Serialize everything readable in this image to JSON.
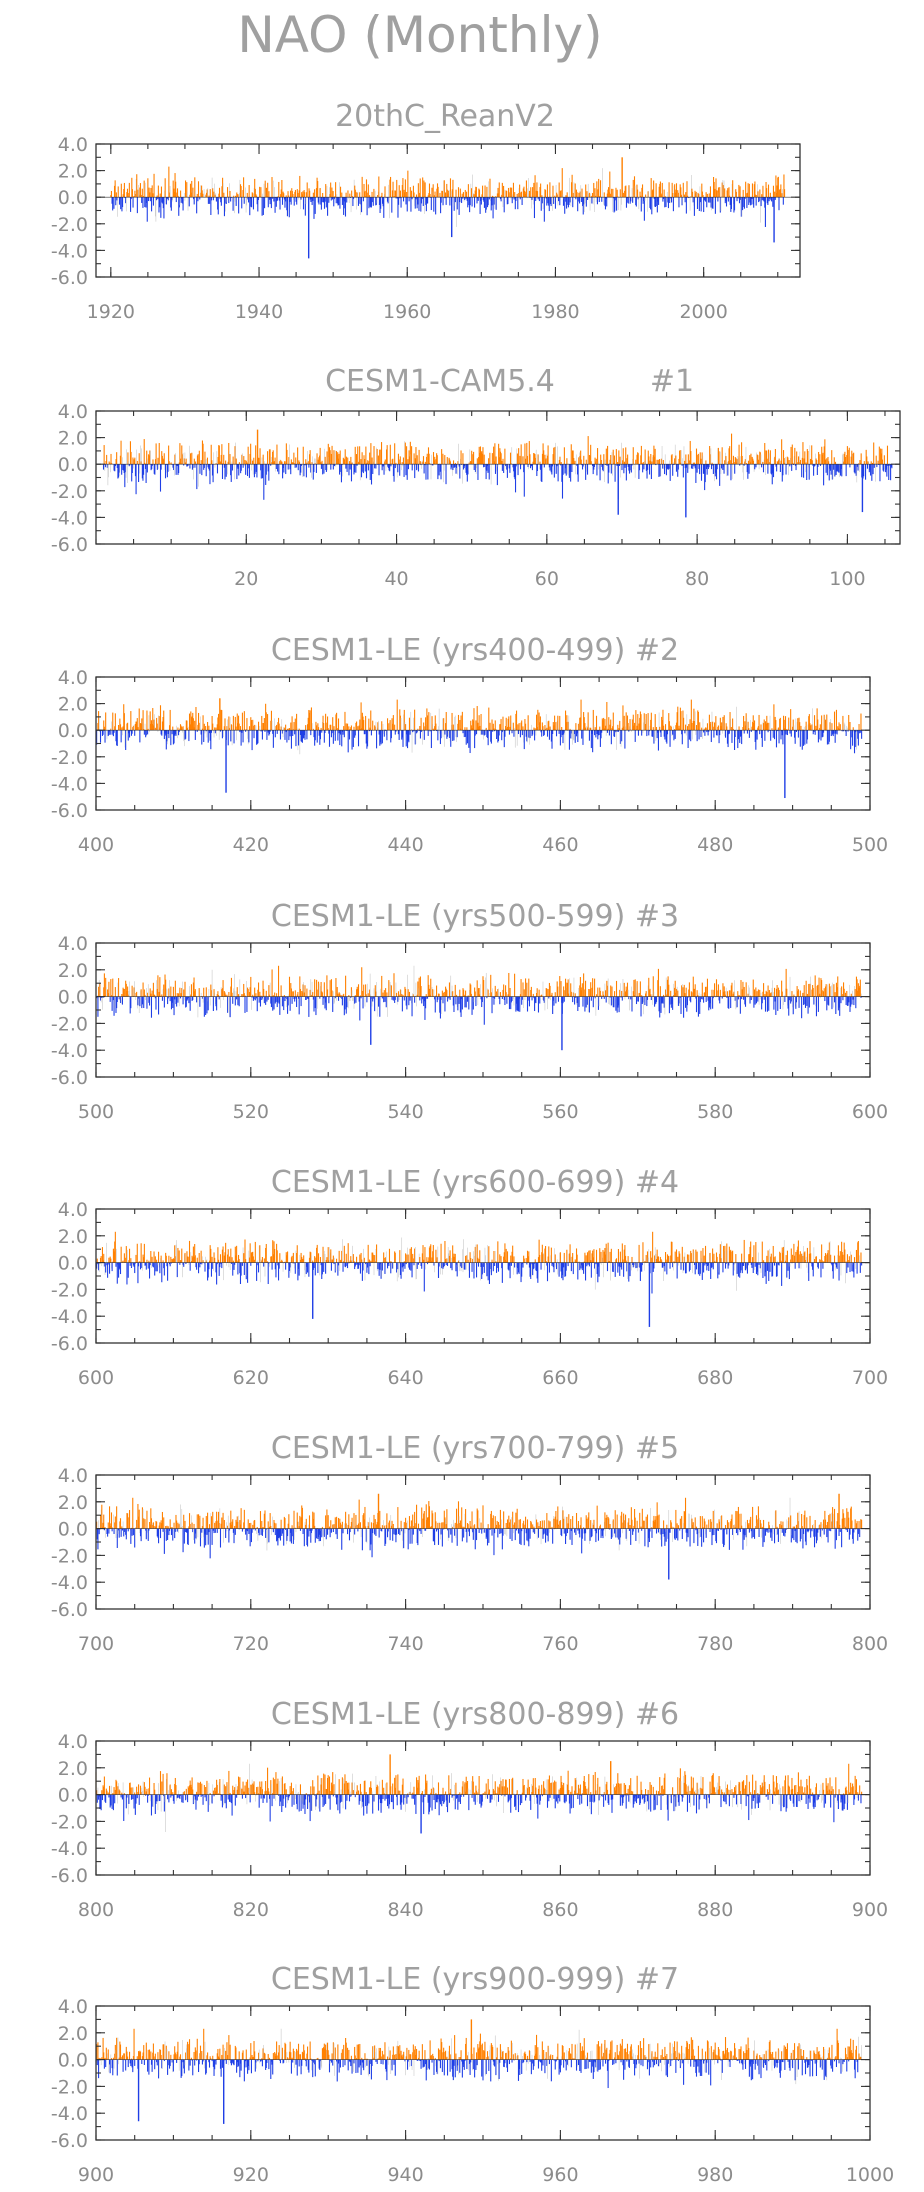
{
  "figure": {
    "title": "NAO (Monthly)"
  },
  "colors": {
    "positive": "#ff8000",
    "negative": "#1f3fe6",
    "faint": "#c8c8c8",
    "text": "#a0a0a0"
  },
  "chart_data": [
    {
      "type": "bar",
      "title": "20thC_ReanV2",
      "title_suffix": "",
      "ylim": [
        -6.0,
        4.0
      ],
      "yticks": [
        "4.0",
        "2.0",
        "0.0",
        "-2.0",
        "-4.0",
        "-6.0"
      ],
      "xlim": [
        1918,
        2013
      ],
      "xticks": [
        "1920",
        "1940",
        "1960",
        "1980",
        "2000"
      ],
      "x_range": [
        1920,
        2011
      ],
      "peaks": [
        {
          "x": 1946.7,
          "y": -4.6
        },
        {
          "x": 1966.0,
          "y": -3.0
        },
        {
          "x": 1989.0,
          "y": 3.0
        },
        {
          "x": 2009.5,
          "y": -3.4
        }
      ]
    },
    {
      "type": "bar",
      "title": "CESM1-CAM5.4",
      "title_suffix": "#1",
      "ylim": [
        -6.0,
        4.0
      ],
      "yticks": [
        "4.0",
        "2.0",
        "0.0",
        "-2.0",
        "-4.0",
        "-6.0"
      ],
      "xlim": [
        0,
        107
      ],
      "xticks": [
        "20",
        "40",
        "60",
        "80",
        "100"
      ],
      "x_range": [
        1,
        106
      ],
      "peaks": [
        {
          "x": 21.5,
          "y": 2.6
        },
        {
          "x": 69.5,
          "y": -3.8
        },
        {
          "x": 78.5,
          "y": -4.0
        },
        {
          "x": 102.0,
          "y": -3.6
        }
      ]
    },
    {
      "type": "bar",
      "title": "CESM1-LE (yrs400-499)",
      "title_suffix": "#2",
      "ylim": [
        -6.0,
        4.0
      ],
      "yticks": [
        "4.0",
        "2.0",
        "0.0",
        "-2.0",
        "-4.0",
        "-6.0"
      ],
      "xlim": [
        400,
        500
      ],
      "xticks": [
        "400",
        "420",
        "440",
        "460",
        "480",
        "500"
      ],
      "x_range": [
        400,
        499
      ],
      "peaks": [
        {
          "x": 416.8,
          "y": -4.7
        },
        {
          "x": 416.0,
          "y": 2.4
        },
        {
          "x": 489.0,
          "y": -5.1
        }
      ]
    },
    {
      "type": "bar",
      "title": "CESM1-LE (yrs500-599)",
      "title_suffix": "#3",
      "ylim": [
        -6.0,
        4.0
      ],
      "yticks": [
        "4.0",
        "2.0",
        "0.0",
        "-2.0",
        "-4.0",
        "-6.0"
      ],
      "xlim": [
        500,
        600
      ],
      "xticks": [
        "500",
        "520",
        "540",
        "560",
        "580",
        "600"
      ],
      "x_range": [
        500,
        599
      ],
      "peaks": [
        {
          "x": 535.5,
          "y": -3.6
        },
        {
          "x": 560.2,
          "y": -4.0
        }
      ]
    },
    {
      "type": "bar",
      "title": "CESM1-LE (yrs600-699)",
      "title_suffix": "#4",
      "ylim": [
        -6.0,
        4.0
      ],
      "yticks": [
        "4.0",
        "2.0",
        "0.0",
        "-2.0",
        "-4.0",
        "-6.0"
      ],
      "xlim": [
        600,
        700
      ],
      "xticks": [
        "600",
        "620",
        "640",
        "660",
        "680",
        "700"
      ],
      "x_range": [
        600,
        699
      ],
      "peaks": [
        {
          "x": 628.0,
          "y": -4.2
        },
        {
          "x": 671.5,
          "y": -4.8
        }
      ]
    },
    {
      "type": "bar",
      "title": "CESM1-LE (yrs700-799)",
      "title_suffix": "#5",
      "ylim": [
        -6.0,
        4.0
      ],
      "yticks": [
        "4.0",
        "2.0",
        "0.0",
        "-2.0",
        "-4.0",
        "-6.0"
      ],
      "xlim": [
        700,
        800
      ],
      "xticks": [
        "700",
        "720",
        "740",
        "760",
        "780",
        "800"
      ],
      "x_range": [
        700,
        799
      ],
      "peaks": [
        {
          "x": 736.5,
          "y": 2.6
        },
        {
          "x": 774.0,
          "y": -3.8
        },
        {
          "x": 796.0,
          "y": 2.6
        }
      ]
    },
    {
      "type": "bar",
      "title": "CESM1-LE (yrs800-899)",
      "title_suffix": "#6",
      "ylim": [
        -6.0,
        4.0
      ],
      "yticks": [
        "4.0",
        "2.0",
        "0.0",
        "-2.0",
        "-4.0",
        "-6.0"
      ],
      "xlim": [
        800,
        900
      ],
      "xticks": [
        "800",
        "820",
        "840",
        "860",
        "880",
        "900"
      ],
      "x_range": [
        800,
        899
      ],
      "peaks": [
        {
          "x": 838.0,
          "y": 3.0
        },
        {
          "x": 842.0,
          "y": -2.9
        },
        {
          "x": 866.5,
          "y": 2.5
        }
      ]
    },
    {
      "type": "bar",
      "title": "CESM1-LE (yrs900-999)",
      "title_suffix": "#7",
      "ylim": [
        -6.0,
        4.0
      ],
      "yticks": [
        "4.0",
        "2.0",
        "0.0",
        "-2.0",
        "-4.0",
        "-6.0"
      ],
      "xlim": [
        900,
        1000
      ],
      "xticks": [
        "900",
        "920",
        "940",
        "960",
        "980",
        "1000"
      ],
      "x_range": [
        900,
        999
      ],
      "peaks": [
        {
          "x": 905.5,
          "y": -4.6
        },
        {
          "x": 916.5,
          "y": -4.8
        },
        {
          "x": 948.5,
          "y": 3.0
        }
      ]
    }
  ]
}
